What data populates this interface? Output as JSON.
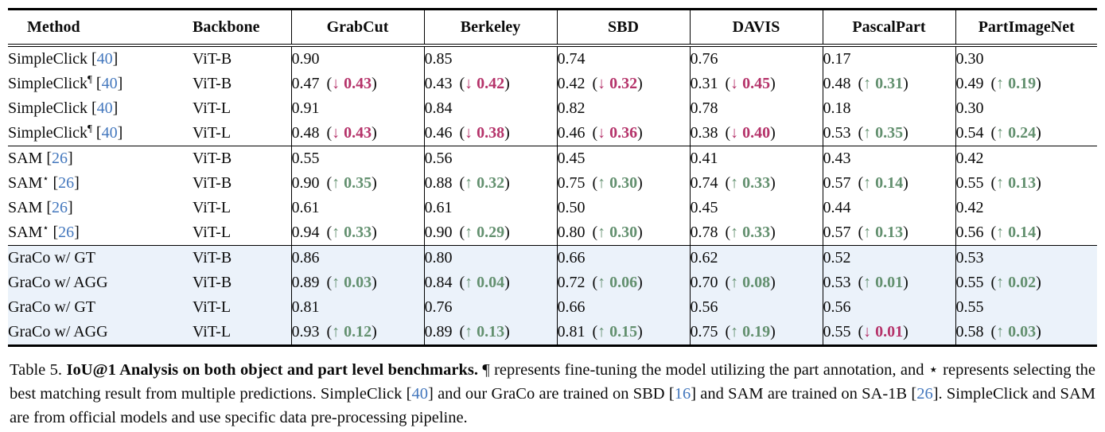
{
  "colors": {
    "cite_blue": "#4377BD",
    "up_green": "#63906F",
    "down_red": "#B5336A",
    "highlight_row_bg": "#EBF2FA"
  },
  "arrows": {
    "up": "↑",
    "down": "↓"
  },
  "table": {
    "columns": [
      "Method",
      "Backbone",
      "GrabCut",
      "Berkeley",
      "SBD",
      "DAVIS",
      "PascalPart",
      "PartImageNet"
    ],
    "groups": [
      {
        "highlight": false,
        "rows": [
          {
            "method": {
              "name": "SimpleClick",
              "sup": "",
              "cite": "40"
            },
            "backbone": "ViT-B",
            "cells": [
              {
                "v": "0.90"
              },
              {
                "v": "0.85"
              },
              {
                "v": "0.74"
              },
              {
                "v": "0.76"
              },
              {
                "v": "0.17"
              },
              {
                "v": "0.30"
              }
            ]
          },
          {
            "method": {
              "name": "SimpleClick",
              "sup": "¶",
              "cite": "40"
            },
            "backbone": "ViT-B",
            "cells": [
              {
                "v": "0.47",
                "dir": "down",
                "d": "0.43"
              },
              {
                "v": "0.43",
                "dir": "down",
                "d": "0.42"
              },
              {
                "v": "0.42",
                "dir": "down",
                "d": "0.32"
              },
              {
                "v": "0.31",
                "dir": "down",
                "d": "0.45"
              },
              {
                "v": "0.48",
                "dir": "up",
                "d": "0.31"
              },
              {
                "v": "0.49",
                "dir": "up",
                "d": "0.19"
              }
            ]
          },
          {
            "method": {
              "name": "SimpleClick",
              "sup": "",
              "cite": "40"
            },
            "backbone": "ViT-L",
            "cells": [
              {
                "v": "0.91"
              },
              {
                "v": "0.84"
              },
              {
                "v": "0.82"
              },
              {
                "v": "0.78"
              },
              {
                "v": "0.18"
              },
              {
                "v": "0.30"
              }
            ]
          },
          {
            "method": {
              "name": "SimpleClick",
              "sup": "¶",
              "cite": "40"
            },
            "backbone": "ViT-L",
            "cells": [
              {
                "v": "0.48",
                "dir": "down",
                "d": "0.43"
              },
              {
                "v": "0.46",
                "dir": "down",
                "d": "0.38"
              },
              {
                "v": "0.46",
                "dir": "down",
                "d": "0.36"
              },
              {
                "v": "0.38",
                "dir": "down",
                "d": "0.40"
              },
              {
                "v": "0.53",
                "dir": "up",
                "d": "0.35"
              },
              {
                "v": "0.54",
                "dir": "up",
                "d": "0.24"
              }
            ]
          }
        ]
      },
      {
        "highlight": false,
        "rows": [
          {
            "method": {
              "name": "SAM",
              "sup": "",
              "cite": "26"
            },
            "backbone": "ViT-B",
            "cells": [
              {
                "v": "0.55"
              },
              {
                "v": "0.56"
              },
              {
                "v": "0.45"
              },
              {
                "v": "0.41"
              },
              {
                "v": "0.43"
              },
              {
                "v": "0.42"
              }
            ]
          },
          {
            "method": {
              "name": "SAM",
              "sup": "⋆",
              "cite": "26"
            },
            "backbone": "ViT-B",
            "cells": [
              {
                "v": "0.90",
                "dir": "up",
                "d": "0.35"
              },
              {
                "v": "0.88",
                "dir": "up",
                "d": "0.32"
              },
              {
                "v": "0.75",
                "dir": "up",
                "d": "0.30"
              },
              {
                "v": "0.74",
                "dir": "up",
                "d": "0.33"
              },
              {
                "v": "0.57",
                "dir": "up",
                "d": "0.14"
              },
              {
                "v": "0.55",
                "dir": "up",
                "d": "0.13"
              }
            ]
          },
          {
            "method": {
              "name": "SAM",
              "sup": "",
              "cite": "26"
            },
            "backbone": "ViT-L",
            "cells": [
              {
                "v": "0.61"
              },
              {
                "v": "0.61"
              },
              {
                "v": "0.50"
              },
              {
                "v": "0.45"
              },
              {
                "v": "0.44"
              },
              {
                "v": "0.42"
              }
            ]
          },
          {
            "method": {
              "name": "SAM",
              "sup": "⋆",
              "cite": "26"
            },
            "backbone": "ViT-L",
            "cells": [
              {
                "v": "0.94",
                "dir": "up",
                "d": "0.33"
              },
              {
                "v": "0.90",
                "dir": "up",
                "d": "0.29"
              },
              {
                "v": "0.80",
                "dir": "up",
                "d": "0.30"
              },
              {
                "v": "0.78",
                "dir": "up",
                "d": "0.33"
              },
              {
                "v": "0.57",
                "dir": "up",
                "d": "0.13"
              },
              {
                "v": "0.56",
                "dir": "up",
                "d": "0.14"
              }
            ]
          }
        ]
      },
      {
        "highlight": true,
        "rows": [
          {
            "method": {
              "name": "GraCo w/ GT",
              "sup": "",
              "cite": ""
            },
            "backbone": "ViT-B",
            "cells": [
              {
                "v": "0.86"
              },
              {
                "v": "0.80"
              },
              {
                "v": "0.66"
              },
              {
                "v": "0.62"
              },
              {
                "v": "0.52"
              },
              {
                "v": "0.53"
              }
            ]
          },
          {
            "method": {
              "name": "GraCo w/ AGG",
              "sup": "",
              "cite": ""
            },
            "backbone": "ViT-B",
            "cells": [
              {
                "v": "0.89",
                "dir": "up",
                "d": "0.03"
              },
              {
                "v": "0.84",
                "dir": "up",
                "d": "0.04"
              },
              {
                "v": "0.72",
                "dir": "up",
                "d": "0.06"
              },
              {
                "v": "0.70",
                "dir": "up",
                "d": "0.08"
              },
              {
                "v": "0.53",
                "dir": "up",
                "d": "0.01"
              },
              {
                "v": "0.55",
                "dir": "up",
                "d": "0.02"
              }
            ]
          },
          {
            "method": {
              "name": "GraCo w/ GT",
              "sup": "",
              "cite": ""
            },
            "backbone": "ViT-L",
            "cells": [
              {
                "v": "0.81"
              },
              {
                "v": "0.76"
              },
              {
                "v": "0.66"
              },
              {
                "v": "0.56"
              },
              {
                "v": "0.56"
              },
              {
                "v": "0.55"
              }
            ]
          },
          {
            "method": {
              "name": "GraCo w/ AGG",
              "sup": "",
              "cite": ""
            },
            "backbone": "ViT-L",
            "cells": [
              {
                "v": "0.93",
                "dir": "up",
                "d": "0.12"
              },
              {
                "v": "0.89",
                "dir": "up",
                "d": "0.13"
              },
              {
                "v": "0.81",
                "dir": "up",
                "d": "0.15"
              },
              {
                "v": "0.75",
                "dir": "up",
                "d": "0.19"
              },
              {
                "v": "0.55",
                "dir": "down",
                "d": "0.01"
              },
              {
                "v": "0.58",
                "dir": "up",
                "d": "0.03"
              }
            ]
          }
        ]
      }
    ]
  },
  "caption": {
    "segments": [
      {
        "text": "Table 5. ",
        "style": "plain"
      },
      {
        "text": "IoU@1 Analysis on both object and part level benchmarks. ",
        "style": "bold"
      },
      {
        "text": "¶ represents fine-tuning the model utilizing the part annotation, and ⋆ represents selecting the best matching result from multiple predictions. SimpleClick [",
        "style": "plain"
      },
      {
        "text": "40",
        "style": "cite"
      },
      {
        "text": "] and our GraCo are trained on SBD [",
        "style": "plain"
      },
      {
        "text": "16",
        "style": "cite"
      },
      {
        "text": "] and SAM are trained on SA-1B [",
        "style": "plain"
      },
      {
        "text": "26",
        "style": "cite"
      },
      {
        "text": "]. SimpleClick and SAM are from official models and use specific data pre-processing pipeline.",
        "style": "plain"
      }
    ]
  }
}
